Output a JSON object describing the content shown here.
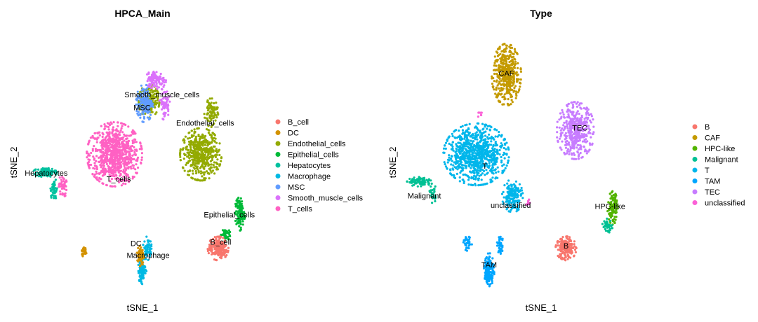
{
  "chart_data": [
    {
      "type": "scatter",
      "title": "HPCA_Main",
      "xlabel": "tSNE_1",
      "ylabel": "tSNE_2",
      "grid": false,
      "legend_position": "right",
      "legend": [
        {
          "name": "B_cell",
          "color": "#F8766D"
        },
        {
          "name": "DC",
          "color": "#D39200"
        },
        {
          "name": "Endothelial_cells",
          "color": "#93AA00"
        },
        {
          "name": "Epithelial_cells",
          "color": "#00BA38"
        },
        {
          "name": "Hepatocytes",
          "color": "#00C19F"
        },
        {
          "name": "Macrophage",
          "color": "#00B9E3"
        },
        {
          "name": "MSC",
          "color": "#619CFF"
        },
        {
          "name": "Smooth_muscle_cells",
          "color": "#DB72FB"
        },
        {
          "name": "T_cells",
          "color": "#FF61C3"
        }
      ],
      "cluster_labels": [
        {
          "text": "Smooth_muscle_cells",
          "x": 55,
          "y": 53
        },
        {
          "text": "MSC",
          "x": 32,
          "y": 42
        },
        {
          "text": "Endothelial_cells",
          "x": 105,
          "y": 29
        },
        {
          "text": "Hepatocytes",
          "x": -79,
          "y": -13
        },
        {
          "text": "T_cells",
          "x": 5,
          "y": -18
        },
        {
          "text": "Epithelial_cells",
          "x": 133,
          "y": -48
        },
        {
          "text": "B_cell",
          "x": 123,
          "y": -71
        },
        {
          "text": "DC",
          "x": 25,
          "y": -72
        },
        {
          "text": "Macrophage",
          "x": 39,
          "y": -82
        }
      ]
    },
    {
      "type": "scatter",
      "title": "Type",
      "xlabel": "tSNE_1",
      "ylabel": "tSNE_2",
      "grid": false,
      "legend_position": "right",
      "legend": [
        {
          "name": "B",
          "color": "#F8766D"
        },
        {
          "name": "CAF",
          "color": "#C49A00"
        },
        {
          "name": "HPC-like",
          "color": "#53B400"
        },
        {
          "name": "Malignant",
          "color": "#00C094"
        },
        {
          "name": "T",
          "color": "#00B6EB"
        },
        {
          "name": "TAM",
          "color": "#00A6FF"
        },
        {
          "name": "TEC",
          "color": "#C77CFF"
        },
        {
          "name": "unclassified",
          "color": "#FB61D7"
        }
      ],
      "cluster_labels": [
        {
          "text": "CAF",
          "x": 15,
          "y": 71
        },
        {
          "text": "TEC",
          "x": 100,
          "y": 25
        },
        {
          "text": "T",
          "x": -10,
          "y": -7
        },
        {
          "text": "Malignant",
          "x": -80,
          "y": -32
        },
        {
          "text": "unclassified",
          "x": 20,
          "y": -40
        },
        {
          "text": "HPC-like",
          "x": 135,
          "y": -41
        },
        {
          "text": "B",
          "x": 84,
          "y": -74
        },
        {
          "text": "TAM",
          "x": -5,
          "y": -90
        }
      ]
    }
  ]
}
